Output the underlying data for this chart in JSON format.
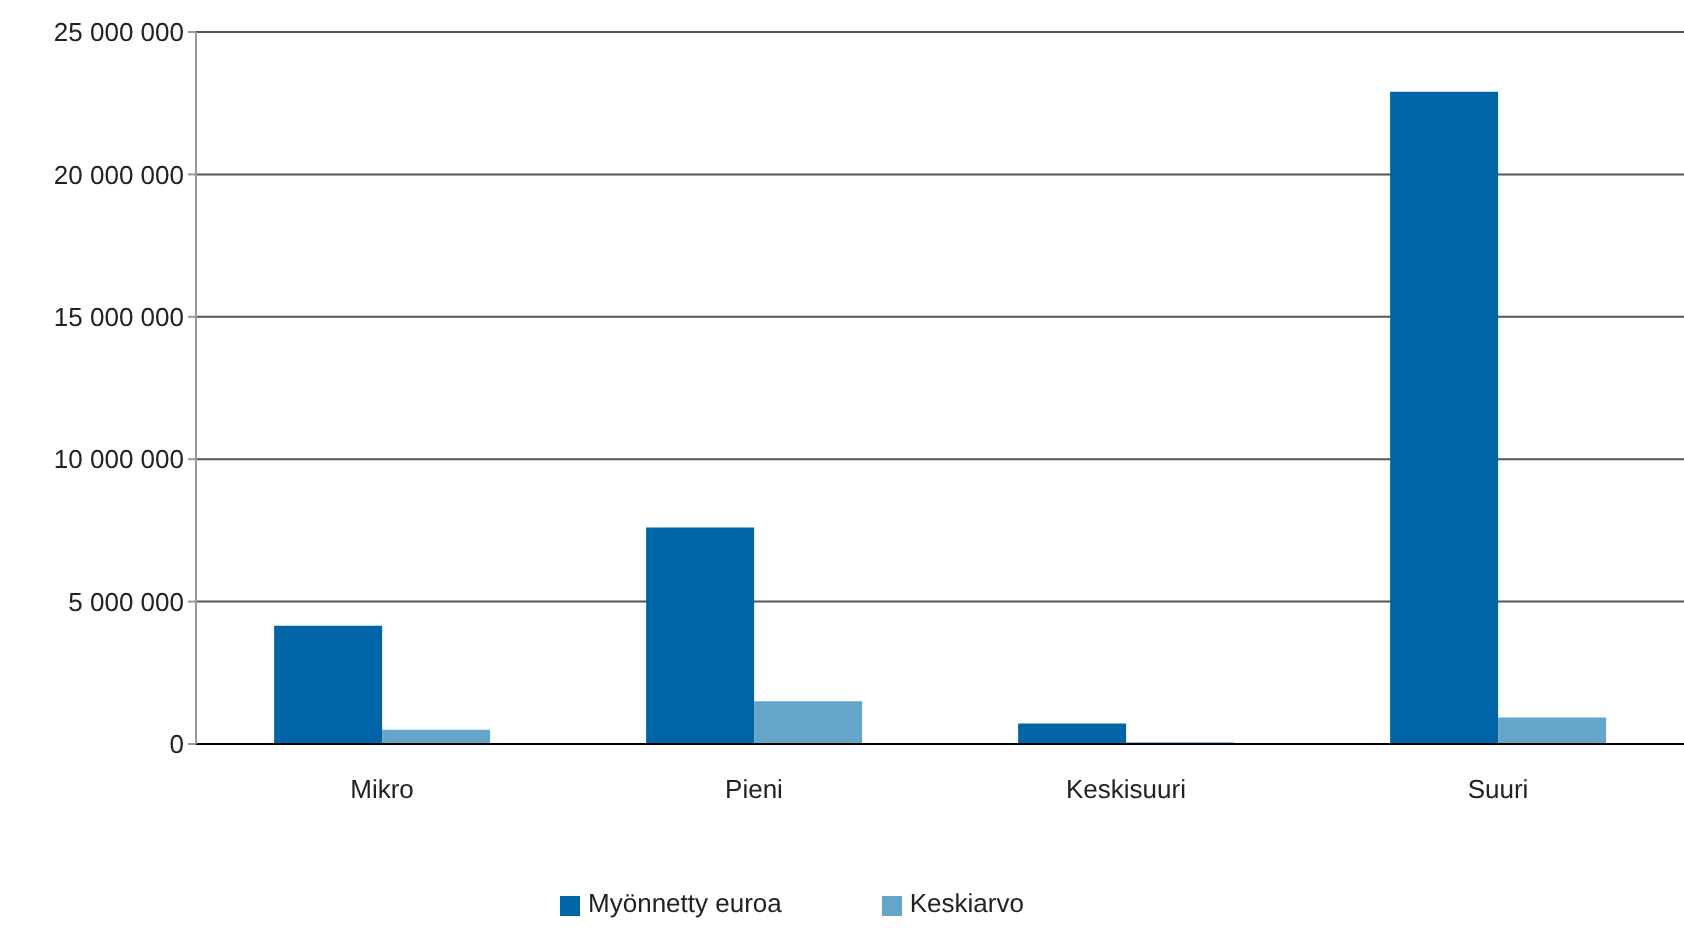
{
  "chart_data": {
    "type": "bar",
    "categories": [
      "Mikro",
      "Pieni",
      "Keskisuuri",
      "Suuri"
    ],
    "series": [
      {
        "name": "Myönnetty euroa",
        "color": "#0065a6",
        "values": [
          4150000,
          7600000,
          720000,
          22900000
        ]
      },
      {
        "name": "Keskiarvo",
        "color": "#65a5ca",
        "values": [
          500000,
          1500000,
          60000,
          930000
        ]
      }
    ],
    "ylim": [
      0,
      25000000
    ],
    "yticks": [
      {
        "value": 0,
        "label": "0"
      },
      {
        "value": 5000000,
        "label": "5 000 000"
      },
      {
        "value": 10000000,
        "label": "10 000 000"
      },
      {
        "value": 15000000,
        "label": "15 000 000"
      },
      {
        "value": 20000000,
        "label": "20 000 000"
      },
      {
        "value": 25000000,
        "label": "25 000 000"
      }
    ],
    "grid": "y",
    "legend": "bottom"
  }
}
